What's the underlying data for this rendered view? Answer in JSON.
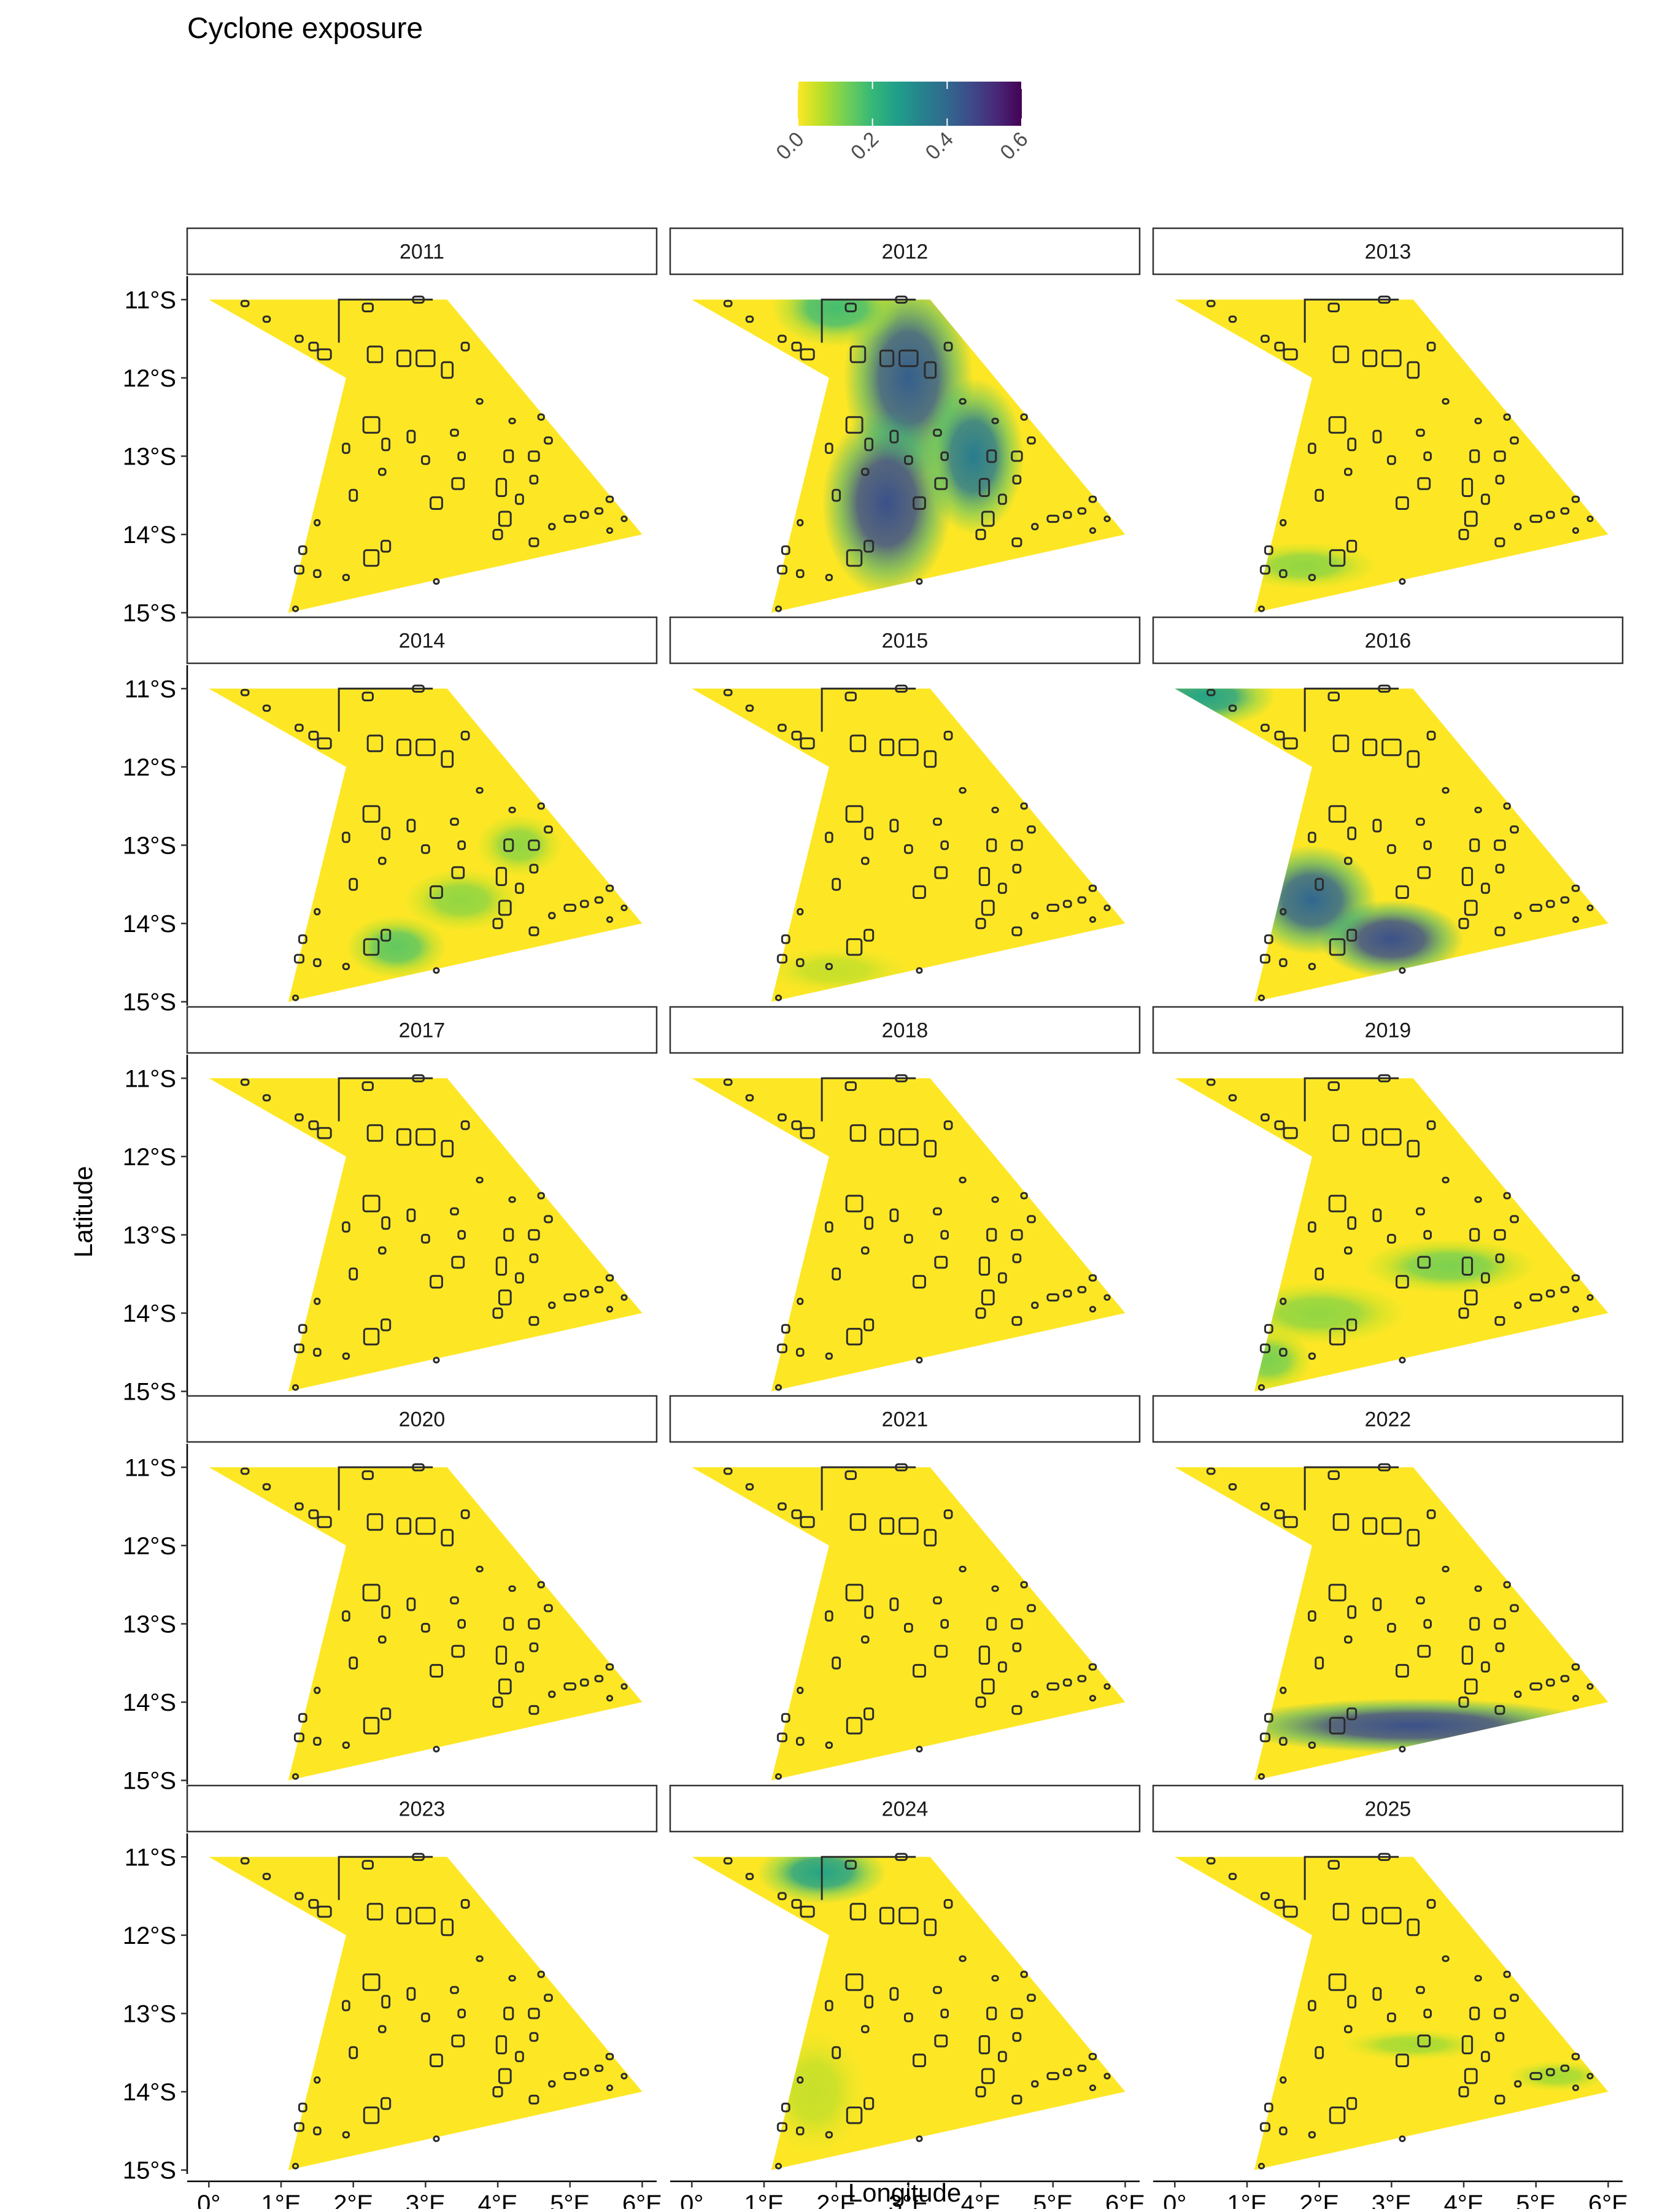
{
  "chart_data": {
    "type": "heatmap",
    "title": "Cyclone exposure",
    "xlabel": "Longitude",
    "ylabel": "Latitude",
    "legend": {
      "position": "top",
      "scale": "viridis (reversed)",
      "range": [
        0.0,
        0.6
      ],
      "ticks": [
        "0.0",
        "0.2",
        "0.4",
        "0.6"
      ],
      "tick_values": [
        0.0,
        0.2,
        0.4,
        0.6
      ]
    },
    "x_ticks": [
      "0°",
      "1°E",
      "2°E",
      "3°E",
      "4°E",
      "5°E",
      "6°E"
    ],
    "x_tick_values": [
      0,
      1,
      2,
      3,
      4,
      5,
      6
    ],
    "xlim": [
      -0.3,
      6.2
    ],
    "y_ticks": [
      "11°S",
      "12°S",
      "13°S",
      "14°S",
      "15°S"
    ],
    "y_tick_values": [
      -11,
      -12,
      -13,
      -14,
      -15
    ],
    "ylim": [
      -15.05,
      -10.7
    ],
    "region_outline_lonlat": [
      [
        0.0,
        -11.0
      ],
      [
        3.3,
        -11.0
      ],
      [
        6.0,
        -14.0
      ],
      [
        1.1,
        -15.0
      ],
      [
        1.9,
        -12.0
      ]
    ],
    "panels": [
      {
        "year": "2011",
        "max_exposure": 0.0,
        "hotspots": []
      },
      {
        "year": "2012",
        "max_exposure": 0.45,
        "hotspots": [
          {
            "lon": 3.0,
            "lat": -12.0,
            "sx": 0.9,
            "sy": 1.3,
            "v": 0.42
          },
          {
            "lon": 2.7,
            "lat": -13.6,
            "sx": 0.9,
            "sy": 1.2,
            "v": 0.45
          },
          {
            "lon": 3.9,
            "lat": -13.0,
            "sx": 0.7,
            "sy": 1.0,
            "v": 0.35
          },
          {
            "lon": 2.0,
            "lat": -11.1,
            "sx": 0.9,
            "sy": 0.5,
            "v": 0.18
          }
        ]
      },
      {
        "year": "2013",
        "max_exposure": 0.1,
        "hotspots": [
          {
            "lon": 1.8,
            "lat": -14.4,
            "sx": 1.0,
            "sy": 0.3,
            "v": 0.1
          }
        ]
      },
      {
        "year": "2014",
        "max_exposure": 0.15,
        "hotspots": [
          {
            "lon": 2.6,
            "lat": -14.3,
            "sx": 0.7,
            "sy": 0.4,
            "v": 0.15
          },
          {
            "lon": 3.5,
            "lat": -13.7,
            "sx": 0.8,
            "sy": 0.4,
            "v": 0.1
          },
          {
            "lon": 4.3,
            "lat": -13.0,
            "sx": 0.6,
            "sy": 0.4,
            "v": 0.1
          }
        ]
      },
      {
        "year": "2015",
        "max_exposure": 0.05,
        "hotspots": [
          {
            "lon": 2.0,
            "lat": -14.6,
            "sx": 1.0,
            "sy": 0.3,
            "v": 0.05
          }
        ]
      },
      {
        "year": "2016",
        "max_exposure": 0.45,
        "hotspots": [
          {
            "lon": 1.9,
            "lat": -13.7,
            "sx": 0.9,
            "sy": 0.7,
            "v": 0.4
          },
          {
            "lon": 3.0,
            "lat": -14.2,
            "sx": 1.0,
            "sy": 0.5,
            "v": 0.45
          },
          {
            "lon": 0.4,
            "lat": -11.1,
            "sx": 1.0,
            "sy": 0.4,
            "v": 0.25
          }
        ]
      },
      {
        "year": "2017",
        "max_exposure": 0.0,
        "hotspots": []
      },
      {
        "year": "2018",
        "max_exposure": 0.0,
        "hotspots": []
      },
      {
        "year": "2019",
        "max_exposure": 0.12,
        "hotspots": [
          {
            "lon": 2.0,
            "lat": -14.0,
            "sx": 1.2,
            "sy": 0.4,
            "v": 0.1
          },
          {
            "lon": 3.8,
            "lat": -13.4,
            "sx": 1.2,
            "sy": 0.35,
            "v": 0.12
          },
          {
            "lon": 1.3,
            "lat": -14.6,
            "sx": 0.6,
            "sy": 0.4,
            "v": 0.12
          }
        ]
      },
      {
        "year": "2020",
        "max_exposure": 0.0,
        "hotspots": []
      },
      {
        "year": "2021",
        "max_exposure": 0.0,
        "hotspots": []
      },
      {
        "year": "2022",
        "max_exposure": 0.45,
        "hotspots": [
          {
            "lon": 3.3,
            "lat": -14.3,
            "sx": 2.6,
            "sy": 0.35,
            "v": 0.45
          }
        ]
      },
      {
        "year": "2023",
        "max_exposure": 0.0,
        "hotspots": []
      },
      {
        "year": "2024",
        "max_exposure": 0.25,
        "hotspots": [
          {
            "lon": 1.8,
            "lat": -11.2,
            "sx": 0.9,
            "sy": 0.4,
            "v": 0.25
          },
          {
            "lon": 1.7,
            "lat": -14.0,
            "sx": 0.7,
            "sy": 0.8,
            "v": 0.05
          }
        ]
      },
      {
        "year": "2025",
        "max_exposure": 0.08,
        "hotspots": [
          {
            "lon": 3.3,
            "lat": -13.4,
            "sx": 1.0,
            "sy": 0.2,
            "v": 0.08
          },
          {
            "lon": 5.3,
            "lat": -13.8,
            "sx": 0.7,
            "sy": 0.2,
            "v": 0.08
          }
        ]
      }
    ],
    "islands_lonlat": [
      [
        0.5,
        -11.05,
        0.1,
        0.07
      ],
      [
        0.8,
        -11.25,
        0.09,
        0.07
      ],
      [
        1.25,
        -11.5,
        0.1,
        0.08
      ],
      [
        1.45,
        -11.6,
        0.12,
        0.1
      ],
      [
        1.6,
        -11.7,
        0.18,
        0.13
      ],
      [
        2.2,
        -11.1,
        0.14,
        0.1
      ],
      [
        2.3,
        -11.7,
        0.2,
        0.2
      ],
      [
        2.7,
        -11.75,
        0.18,
        0.2
      ],
      [
        2.9,
        -11.0,
        0.15,
        0.08
      ],
      [
        3.0,
        -11.75,
        0.25,
        0.2
      ],
      [
        3.3,
        -11.9,
        0.15,
        0.2
      ],
      [
        3.55,
        -11.6,
        0.1,
        0.1
      ],
      [
        2.25,
        -12.6,
        0.22,
        0.2
      ],
      [
        2.45,
        -12.85,
        0.1,
        0.15
      ],
      [
        2.8,
        -12.75,
        0.1,
        0.15
      ],
      [
        3.0,
        -13.05,
        0.1,
        0.1
      ],
      [
        3.4,
        -12.7,
        0.1,
        0.08
      ],
      [
        3.75,
        -12.3,
        0.08,
        0.06
      ],
      [
        2.0,
        -13.5,
        0.1,
        0.14
      ],
      [
        1.9,
        -12.9,
        0.09,
        0.12
      ],
      [
        2.4,
        -13.2,
        0.09,
        0.08
      ],
      [
        3.15,
        -13.6,
        0.16,
        0.15
      ],
      [
        3.45,
        -13.35,
        0.16,
        0.14
      ],
      [
        4.2,
        -12.55,
        0.08,
        0.06
      ],
      [
        4.15,
        -13.0,
        0.12,
        0.15
      ],
      [
        4.05,
        -13.4,
        0.13,
        0.22
      ],
      [
        4.1,
        -13.8,
        0.16,
        0.18
      ],
      [
        4.3,
        -13.55,
        0.1,
        0.12
      ],
      [
        4.5,
        -13.3,
        0.1,
        0.1
      ],
      [
        4.5,
        -13.0,
        0.14,
        0.12
      ],
      [
        4.7,
        -12.8,
        0.1,
        0.08
      ],
      [
        4.75,
        -13.9,
        0.08,
        0.07
      ],
      [
        4.0,
        -14.0,
        0.12,
        0.12
      ],
      [
        4.5,
        -14.1,
        0.12,
        0.1
      ],
      [
        5.0,
        -13.8,
        0.15,
        0.08
      ],
      [
        5.2,
        -13.75,
        0.1,
        0.08
      ],
      [
        5.4,
        -13.7,
        0.1,
        0.07
      ],
      [
        5.55,
        -13.55,
        0.09,
        0.07
      ],
      [
        5.55,
        -13.95,
        0.07,
        0.06
      ],
      [
        5.75,
        -13.8,
        0.07,
        0.06
      ],
      [
        1.5,
        -13.85,
        0.07,
        0.07
      ],
      [
        1.3,
        -14.2,
        0.1,
        0.1
      ],
      [
        1.25,
        -14.45,
        0.12,
        0.1
      ],
      [
        1.5,
        -14.5,
        0.09,
        0.09
      ],
      [
        2.25,
        -14.3,
        0.2,
        0.2
      ],
      [
        2.45,
        -14.15,
        0.12,
        0.14
      ],
      [
        1.9,
        -14.55,
        0.08,
        0.07
      ],
      [
        3.15,
        -14.6,
        0.07,
        0.06
      ],
      [
        1.2,
        -14.95,
        0.07,
        0.06
      ],
      [
        4.6,
        -12.5,
        0.08,
        0.07
      ],
      [
        3.5,
        -13.0,
        0.09,
        0.1
      ]
    ]
  }
}
